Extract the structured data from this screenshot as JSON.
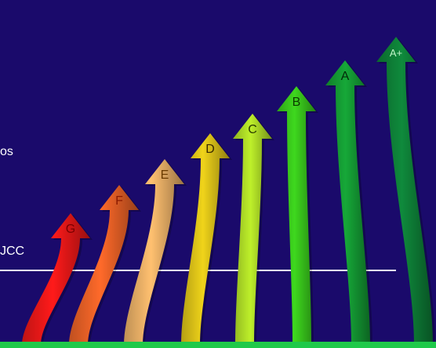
{
  "colors": {
    "background": "#1a0a6b",
    "bottom_bar": "#1fc94a",
    "reference_line": "#ffffff"
  },
  "side_text": {
    "upper_fragment": "os",
    "lower_fragment": "JCC"
  },
  "arrows": [
    {
      "label": "G",
      "color": "#ff1a1a",
      "label_color": "#7a0000"
    },
    {
      "label": "F",
      "color": "#ff6a2a",
      "label_color": "#8a1a00"
    },
    {
      "label": "E",
      "color": "#ffc070",
      "label_color": "#6a3a00"
    },
    {
      "label": "D",
      "color": "#f0d41a",
      "label_color": "#3a2a00"
    },
    {
      "label": "C",
      "color": "#bef02a",
      "label_color": "#2a3a00"
    },
    {
      "label": "B",
      "color": "#3ed81e",
      "label_color": "#0a3a00"
    },
    {
      "label": "A",
      "color": "#16a838",
      "label_color": "#022a08"
    },
    {
      "label": "A+",
      "color": "#0f8a3c",
      "label_color": "#bff5c8"
    }
  ]
}
